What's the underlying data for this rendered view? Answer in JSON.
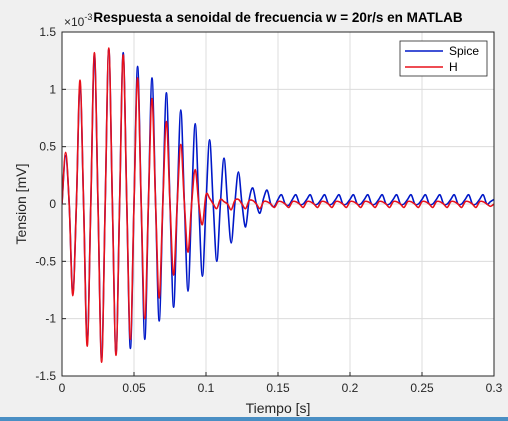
{
  "chart_data": {
    "type": "line",
    "title": "Respuesta a senoidal de frecuencia w = 20r/s en MATLAB",
    "xlabel": "Tiempo [s]",
    "ylabel": "Tension [mV]",
    "y_exponent_label": "×10",
    "y_exponent_power": "-3",
    "xlim": [
      0,
      0.3
    ],
    "ylim": [
      -1.5,
      1.5
    ],
    "xticks": [
      "0",
      "0.05",
      "0.1",
      "0.15",
      "0.2",
      "0.25",
      "0.3"
    ],
    "yticks": [
      "-1.5",
      "-1",
      "-0.5",
      "0",
      "0.5",
      "1",
      "1.5"
    ],
    "grid": true,
    "legend_position": "top-right",
    "colors": {
      "Spice": "#0018c8",
      "H": "#e8101a"
    },
    "series": [
      {
        "name": "Spice",
        "x": [
          0,
          0.0025,
          0.005,
          0.0075,
          0.01,
          0.0125,
          0.015,
          0.0175,
          0.02,
          0.0225,
          0.025,
          0.0275,
          0.03,
          0.0325,
          0.035,
          0.0375,
          0.04,
          0.0425,
          0.045,
          0.0475,
          0.05,
          0.0525,
          0.055,
          0.0575,
          0.06,
          0.0625,
          0.065,
          0.0675,
          0.07,
          0.0725,
          0.075,
          0.0775,
          0.08,
          0.0825,
          0.085,
          0.0875,
          0.09,
          0.0925,
          0.095,
          0.0975,
          0.1,
          0.1025,
          0.105,
          0.1075,
          0.11,
          0.1125,
          0.115,
          0.1175,
          0.12,
          0.1225,
          0.125,
          0.1275,
          0.13,
          0.1325,
          0.135,
          0.1375,
          0.14,
          0.1425,
          0.145,
          0.1475,
          0.15,
          0.1525,
          0.155,
          0.1575,
          0.16,
          0.1625,
          0.165,
          0.1675,
          0.17,
          0.1725,
          0.175,
          0.1775,
          0.18,
          0.1825,
          0.185,
          0.1875,
          0.19,
          0.1925,
          0.195,
          0.1975,
          0.2,
          0.2025,
          0.205,
          0.2075,
          0.21,
          0.2125,
          0.215,
          0.2175,
          0.22,
          0.2225,
          0.225,
          0.2275,
          0.23,
          0.2325,
          0.235,
          0.2375,
          0.24,
          0.2425,
          0.245,
          0.2475,
          0.25,
          0.2525,
          0.255,
          0.2575,
          0.26,
          0.2625,
          0.265,
          0.2675,
          0.27,
          0.2725,
          0.275,
          0.2775,
          0.28,
          0.2825,
          0.285,
          0.2875,
          0.29,
          0.2925,
          0.295,
          0.2975,
          0.3
        ],
        "y": [
          0,
          0.42,
          0.0,
          -0.78,
          0.0,
          1.04,
          0.0,
          -1.2,
          0.0,
          1.3,
          0.0,
          -1.34,
          0.0,
          1.35,
          0.0,
          -1.3,
          0.0,
          1.32,
          0.0,
          -1.26,
          0.0,
          1.2,
          0.0,
          -1.18,
          0.0,
          1.1,
          0.0,
          -1.02,
          0.0,
          0.97,
          0.0,
          -0.9,
          0.0,
          0.82,
          0.0,
          -0.76,
          0.0,
          0.7,
          0.0,
          -0.63,
          0.0,
          0.56,
          0.0,
          -0.5,
          0.0,
          0.4,
          0.0,
          -0.34,
          0.0,
          0.28,
          0.0,
          -0.2,
          0.04,
          0.14,
          0.0,
          -0.08,
          0.05,
          0.12,
          0.0,
          -0.02,
          0.04,
          0.08,
          0.0,
          -0.01,
          0.04,
          0.08,
          0.0,
          0.0,
          0.04,
          0.08,
          0.0,
          0.0,
          0.04,
          0.08,
          0.0,
          0.0,
          0.04,
          0.08,
          0.0,
          0.0,
          0.04,
          0.08,
          0.0,
          0.0,
          0.04,
          0.08,
          0.0,
          0.0,
          0.04,
          0.08,
          0.0,
          0.0,
          0.04,
          0.08,
          0.0,
          0.0,
          0.04,
          0.08,
          0.0,
          0.0,
          0.04,
          0.08,
          0.0,
          0.0,
          0.04,
          0.08,
          0.0,
          0.0,
          0.04,
          0.08,
          0.0,
          0.0,
          0.04,
          0.08,
          0.0,
          0.0,
          0.04,
          0.08,
          0.0,
          0.02,
          0.04
        ]
      },
      {
        "name": "H",
        "x": [
          0,
          0.0025,
          0.005,
          0.0075,
          0.01,
          0.0125,
          0.015,
          0.0175,
          0.02,
          0.0225,
          0.025,
          0.0275,
          0.03,
          0.0325,
          0.035,
          0.0375,
          0.04,
          0.0425,
          0.045,
          0.0475,
          0.05,
          0.0525,
          0.055,
          0.0575,
          0.06,
          0.0625,
          0.065,
          0.0675,
          0.07,
          0.0725,
          0.075,
          0.0775,
          0.08,
          0.0825,
          0.085,
          0.0875,
          0.09,
          0.0925,
          0.095,
          0.0975,
          0.1,
          0.1025,
          0.105,
          0.1075,
          0.11,
          0.1125,
          0.115,
          0.1175,
          0.12,
          0.1225,
          0.125,
          0.1275,
          0.13,
          0.1325,
          0.135,
          0.1375,
          0.14,
          0.1425,
          0.145,
          0.1475,
          0.15,
          0.1525,
          0.155,
          0.1575,
          0.16,
          0.1625,
          0.165,
          0.1675,
          0.17,
          0.1725,
          0.175,
          0.1775,
          0.18,
          0.1825,
          0.185,
          0.1875,
          0.19,
          0.1925,
          0.195,
          0.1975,
          0.2,
          0.2025,
          0.205,
          0.2075,
          0.21,
          0.2125,
          0.215,
          0.2175,
          0.22,
          0.2225,
          0.225,
          0.2275,
          0.23,
          0.2325,
          0.235,
          0.2375,
          0.24,
          0.2425,
          0.245,
          0.2475,
          0.25,
          0.2525,
          0.255,
          0.2575,
          0.26,
          0.2625,
          0.265,
          0.2675,
          0.27,
          0.2725,
          0.275,
          0.2775,
          0.28,
          0.2825,
          0.285,
          0.2875,
          0.29,
          0.2925,
          0.295,
          0.2975,
          0.3
        ],
        "y": [
          0,
          0.45,
          0.0,
          -0.8,
          0.0,
          1.08,
          0.0,
          -1.24,
          0.0,
          1.32,
          0.0,
          -1.38,
          0.0,
          1.36,
          0.0,
          -1.32,
          0.0,
          1.3,
          0.0,
          -1.18,
          0.0,
          1.1,
          0.0,
          -1.0,
          0.0,
          0.92,
          0.0,
          -0.82,
          0.0,
          0.72,
          0.0,
          -0.62,
          0.0,
          0.52,
          0.0,
          -0.42,
          0.0,
          0.3,
          0.0,
          -0.18,
          0.08,
          0.05,
          0.0,
          -0.04,
          0.04,
          0.02,
          0.0,
          -0.05,
          0.03,
          0.04,
          0.0,
          -0.04,
          0.03,
          0.03,
          0.0,
          -0.04,
          0.02,
          0.02,
          0.0,
          -0.03,
          0.02,
          0.02,
          0.0,
          -0.03,
          0.02,
          0.02,
          0.0,
          -0.03,
          0.02,
          0.02,
          0.0,
          -0.03,
          0.02,
          0.02,
          0.0,
          -0.03,
          0.02,
          0.02,
          0.0,
          -0.03,
          0.02,
          0.02,
          0.0,
          -0.03,
          0.02,
          0.02,
          0.0,
          -0.03,
          0.02,
          0.02,
          0.0,
          -0.03,
          0.02,
          0.02,
          0.0,
          -0.03,
          0.02,
          0.02,
          0.0,
          -0.03,
          0.02,
          0.02,
          0.0,
          -0.03,
          0.02,
          0.02,
          0.0,
          -0.03,
          0.02,
          0.02,
          0.0,
          -0.03,
          0.02,
          0.02,
          0.0,
          -0.03,
          0.02,
          0.02,
          0.0,
          -0.02,
          0.0
        ]
      }
    ]
  }
}
